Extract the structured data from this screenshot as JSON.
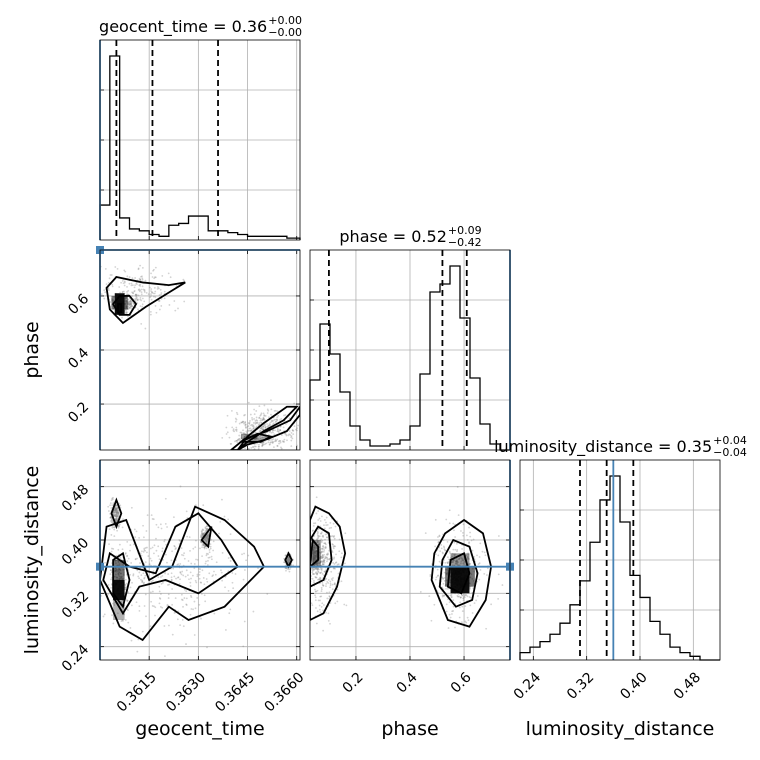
{
  "colors": {
    "truth": "#4682b4",
    "line": "#000000",
    "grid": "#b0b0b0",
    "points": "#808080"
  },
  "chart_data": {
    "type": "corner",
    "parameters": [
      "geocent_time",
      "phase",
      "luminosity_distance"
    ],
    "truths": {
      "geocent_time": 0.36,
      "phase": 0.77,
      "luminosity_distance": 0.36
    },
    "titles": {
      "geocent_time": {
        "prefix": "geocent_time = 0.36",
        "plus": "+0.00",
        "minus": "−0.00"
      },
      "phase": {
        "prefix": "phase = 0.52",
        "plus": "+0.09",
        "minus": "−0.42"
      },
      "luminosity_distance": {
        "prefix": "luminosity_distance = 0.35",
        "plus": "+0.04",
        "minus": "−0.04"
      }
    },
    "axes": {
      "geocent_time": {
        "label": "geocent_time",
        "range": [
          0.36,
          0.3661
        ],
        "ticks": [
          0.3615,
          0.363,
          0.3645,
          0.366
        ],
        "tick_labels": [
          "0.3615",
          "0.3630",
          "0.3645",
          "0.3660"
        ]
      },
      "phase": {
        "label": "phase",
        "range": [
          0.03,
          0.77
        ],
        "ticks": [
          0.2,
          0.4,
          0.6
        ],
        "tick_labels": [
          "0.2",
          "0.4",
          "0.6"
        ]
      },
      "luminosity_distance": {
        "label": "luminosity_distance",
        "range": [
          0.22,
          0.52
        ],
        "ticks": [
          0.24,
          0.32,
          0.4,
          0.48
        ],
        "tick_labels": [
          "0.24",
          "0.32",
          "0.40",
          "0.48"
        ]
      }
    },
    "histograms": {
      "geocent_time": {
        "edges": [
          0.36,
          0.3603,
          0.3606,
          0.3609,
          0.3612,
          0.3615,
          0.3618,
          0.3621,
          0.3624,
          0.3627,
          0.363,
          0.3633,
          0.3636,
          0.3639,
          0.3642,
          0.3645,
          0.3648,
          0.3651,
          0.3654,
          0.3657,
          0.3661
        ],
        "counts": [
          0.19,
          1.0,
          0.12,
          0.06,
          0.05,
          0.03,
          0.02,
          0.08,
          0.09,
          0.13,
          0.13,
          0.05,
          0.05,
          0.04,
          0.03,
          0.02,
          0.02,
          0.02,
          0.02,
          0.01
        ],
        "quantiles": [
          0.3605,
          0.3616,
          0.3636
        ]
      },
      "phase": {
        "edges": [
          0.03,
          0.067,
          0.104,
          0.141,
          0.178,
          0.215,
          0.252,
          0.289,
          0.326,
          0.363,
          0.4,
          0.437,
          0.474,
          0.511,
          0.548,
          0.585,
          0.622,
          0.659,
          0.696,
          0.733,
          0.77
        ],
        "counts": [
          0.35,
          0.63,
          0.48,
          0.29,
          0.12,
          0.05,
          0.02,
          0.02,
          0.03,
          0.05,
          0.12,
          0.38,
          0.79,
          0.83,
          0.92,
          0.66,
          0.36,
          0.13,
          0.03,
          0.0
        ],
        "quantiles": [
          0.1,
          0.52,
          0.61
        ]
      },
      "luminosity_distance": {
        "edges": [
          0.22,
          0.235,
          0.25,
          0.265,
          0.28,
          0.295,
          0.31,
          0.325,
          0.34,
          0.355,
          0.37,
          0.385,
          0.4,
          0.415,
          0.43,
          0.445,
          0.46,
          0.475,
          0.49,
          0.505,
          0.52
        ],
        "counts": [
          0.04,
          0.07,
          0.1,
          0.14,
          0.2,
          0.3,
          0.43,
          0.64,
          0.87,
          1.0,
          0.75,
          0.46,
          0.34,
          0.21,
          0.14,
          0.07,
          0.04,
          0.02,
          0.0,
          0.0
        ],
        "quantiles": [
          0.31,
          0.35,
          0.39
        ]
      }
    },
    "contours": {
      "phase_vs_geocent_time": [
        {
          "x": [
            0.3602,
            0.3605,
            0.3609,
            0.3613,
            0.3621,
            0.3626,
            0.3622,
            0.3614,
            0.3607,
            0.3603,
            0.3602
          ],
          "y": [
            0.63,
            0.67,
            0.66,
            0.65,
            0.64,
            0.65,
            0.62,
            0.56,
            0.5,
            0.55,
            0.63
          ]
        },
        {
          "x": [
            0.3604,
            0.3606,
            0.3609,
            0.3611,
            0.3609,
            0.3606,
            0.3604
          ],
          "y": [
            0.57,
            0.6,
            0.6,
            0.57,
            0.53,
            0.53,
            0.57
          ]
        },
        {
          "x": [
            0.36055,
            0.36065,
            0.36065,
            0.36055,
            0.36055
          ],
          "y": [
            0.54,
            0.54,
            0.57,
            0.57,
            0.54
          ]
        },
        {
          "x": [
            0.364,
            0.3644,
            0.3651,
            0.3658,
            0.3661,
            0.3661,
            0.3657,
            0.3651,
            0.3645,
            0.3642,
            0.364
          ],
          "y": [
            0.03,
            0.07,
            0.1,
            0.14,
            0.19,
            0.16,
            0.1,
            0.07,
            0.05,
            0.03,
            0.03
          ]
        },
        {
          "x": [
            0.3642,
            0.3645,
            0.365,
            0.3656,
            0.366,
            0.3657,
            0.365,
            0.3645,
            0.3642
          ],
          "y": [
            0.03,
            0.06,
            0.1,
            0.14,
            0.19,
            0.19,
            0.13,
            0.08,
            0.03
          ]
        },
        {
          "x": [
            0.3643,
            0.3648,
            0.3652,
            0.3649,
            0.3643
          ],
          "y": [
            0.06,
            0.09,
            0.08,
            0.06,
            0.06
          ]
        }
      ],
      "luminosity_distance_vs_geocent_time": [
        {
          "x": [
            0.36,
            0.3606,
            0.3613,
            0.3621,
            0.3627,
            0.3638,
            0.365,
            0.3647,
            0.3638,
            0.3629,
            0.3622,
            0.3615,
            0.3608,
            0.3602,
            0.36
          ],
          "y": [
            0.34,
            0.27,
            0.25,
            0.3,
            0.28,
            0.3,
            0.36,
            0.39,
            0.43,
            0.45,
            0.36,
            0.34,
            0.43,
            0.42,
            0.34
          ]
        },
        {
          "x": [
            0.3601,
            0.3607,
            0.3612,
            0.362,
            0.363,
            0.3642,
            0.3637,
            0.363,
            0.3623,
            0.3617,
            0.3609,
            0.3603,
            0.3601
          ],
          "y": [
            0.34,
            0.29,
            0.33,
            0.34,
            0.32,
            0.36,
            0.4,
            0.44,
            0.42,
            0.35,
            0.36,
            0.38,
            0.34
          ]
        },
        {
          "x": [
            0.3604,
            0.3607,
            0.3609,
            0.3607,
            0.3604,
            0.3604
          ],
          "y": [
            0.32,
            0.3,
            0.34,
            0.38,
            0.37,
            0.32
          ]
        },
        {
          "x": [
            0.3631,
            0.3634,
            0.3633,
            0.3631
          ],
          "y": [
            0.4,
            0.42,
            0.39,
            0.4
          ]
        },
        {
          "x": [
            0.36035,
            0.3605,
            0.36065,
            0.3605,
            0.36035
          ],
          "y": [
            0.44,
            0.42,
            0.44,
            0.46,
            0.44
          ]
        },
        {
          "x": [
            0.36575,
            0.36585,
            0.36575,
            0.36565,
            0.36575
          ],
          "y": [
            0.36,
            0.37,
            0.38,
            0.37,
            0.36
          ]
        }
      ],
      "luminosity_distance_vs_phase": [
        {
          "x": [
            0.03,
            0.08,
            0.13,
            0.16,
            0.14,
            0.1,
            0.05,
            0.03,
            0.03
          ],
          "y": [
            0.28,
            0.29,
            0.33,
            0.38,
            0.42,
            0.44,
            0.45,
            0.43,
            0.28
          ]
        },
        {
          "x": [
            0.03,
            0.08,
            0.11,
            0.1,
            0.06,
            0.03,
            0.03
          ],
          "y": [
            0.33,
            0.34,
            0.37,
            0.41,
            0.42,
            0.4,
            0.33
          ]
        },
        {
          "x": [
            0.03,
            0.06,
            0.06,
            0.04,
            0.03
          ],
          "y": [
            0.36,
            0.37,
            0.39,
            0.4,
            0.36
          ]
        },
        {
          "x": [
            0.48,
            0.54,
            0.62,
            0.68,
            0.7,
            0.67,
            0.6,
            0.53,
            0.49,
            0.48
          ],
          "y": [
            0.34,
            0.28,
            0.27,
            0.31,
            0.36,
            0.41,
            0.43,
            0.41,
            0.38,
            0.34
          ]
        },
        {
          "x": [
            0.51,
            0.57,
            0.63,
            0.65,
            0.62,
            0.56,
            0.52,
            0.51
          ],
          "y": [
            0.33,
            0.3,
            0.31,
            0.35,
            0.39,
            0.4,
            0.37,
            0.33
          ]
        },
        {
          "x": [
            0.54,
            0.59,
            0.62,
            0.6,
            0.55,
            0.54
          ],
          "y": [
            0.33,
            0.32,
            0.35,
            0.38,
            0.37,
            0.33
          ]
        }
      ]
    },
    "density_cells": {
      "phase_vs_geocent_time": [
        {
          "x": [
            0.36045,
            0.36075
          ],
          "y": [
            0.53,
            0.61
          ],
          "shade": 0.95
        },
        {
          "x": [
            0.36035,
            0.36045
          ],
          "y": [
            0.55,
            0.6
          ],
          "shade": 0.5
        },
        {
          "x": [
            0.36075,
            0.36085
          ],
          "y": [
            0.55,
            0.6
          ],
          "shade": 0.45
        },
        {
          "x": [
            0.3643,
            0.3648
          ],
          "y": [
            0.07,
            0.09
          ],
          "shade": 0.35
        }
      ],
      "luminosity_distance_vs_geocent_time": [
        {
          "x": [
            0.3604,
            0.36075
          ],
          "y": [
            0.31,
            0.34
          ],
          "shade": 0.95
        },
        {
          "x": [
            0.3604,
            0.36075
          ],
          "y": [
            0.34,
            0.37
          ],
          "shade": 0.55
        },
        {
          "x": [
            0.3604,
            0.36075
          ],
          "y": [
            0.28,
            0.31
          ],
          "shade": 0.3
        }
      ],
      "luminosity_distance_vs_phase": [
        {
          "x": [
            0.55,
            0.62
          ],
          "y": [
            0.32,
            0.36
          ],
          "shade": 0.95
        },
        {
          "x": [
            0.53,
            0.55
          ],
          "y": [
            0.33,
            0.36
          ],
          "shade": 0.55
        },
        {
          "x": [
            0.62,
            0.64
          ],
          "y": [
            0.33,
            0.36
          ],
          "shade": 0.55
        },
        {
          "x": [
            0.55,
            0.62
          ],
          "y": [
            0.36,
            0.38
          ],
          "shade": 0.4
        },
        {
          "x": [
            0.04,
            0.07
          ],
          "y": [
            0.36,
            0.4
          ],
          "shade": 0.4
        }
      ]
    }
  }
}
